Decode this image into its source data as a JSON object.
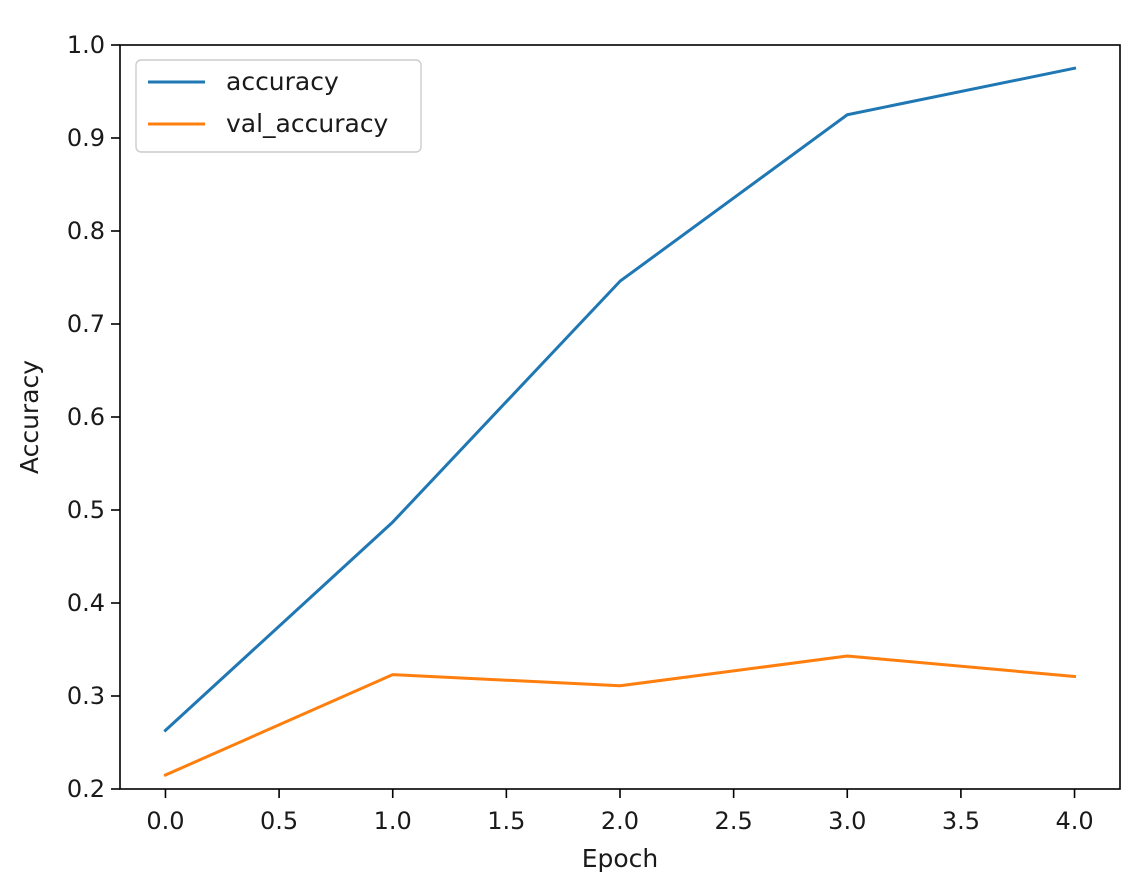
{
  "chart_data": {
    "type": "line",
    "x": [
      0,
      1,
      2,
      3,
      4
    ],
    "series": [
      {
        "name": "accuracy",
        "color": "#1f77b4",
        "values": [
          0.263,
          0.487,
          0.746,
          0.925,
          0.975
        ]
      },
      {
        "name": "val_accuracy",
        "color": "#ff7f0e",
        "values": [
          0.215,
          0.323,
          0.311,
          0.343,
          0.321
        ]
      }
    ],
    "title": "",
    "xlabel": "Epoch",
    "ylabel": "Accuracy",
    "xlim": [
      -0.2,
      4.2
    ],
    "ylim": [
      0.2,
      1.0
    ],
    "xticks": [
      0.0,
      0.5,
      1.0,
      1.5,
      2.0,
      2.5,
      3.0,
      3.5,
      4.0
    ],
    "xtick_labels": [
      "0.0",
      "0.5",
      "1.0",
      "1.5",
      "2.0",
      "2.5",
      "3.0",
      "3.5",
      "4.0"
    ],
    "yticks": [
      0.2,
      0.3,
      0.4,
      0.5,
      0.6,
      0.7,
      0.8,
      0.9,
      1.0
    ],
    "ytick_labels": [
      "0.2",
      "0.3",
      "0.4",
      "0.5",
      "0.6",
      "0.7",
      "0.8",
      "0.9",
      "1.0"
    ],
    "grid": false,
    "legend_position": "top-left"
  }
}
